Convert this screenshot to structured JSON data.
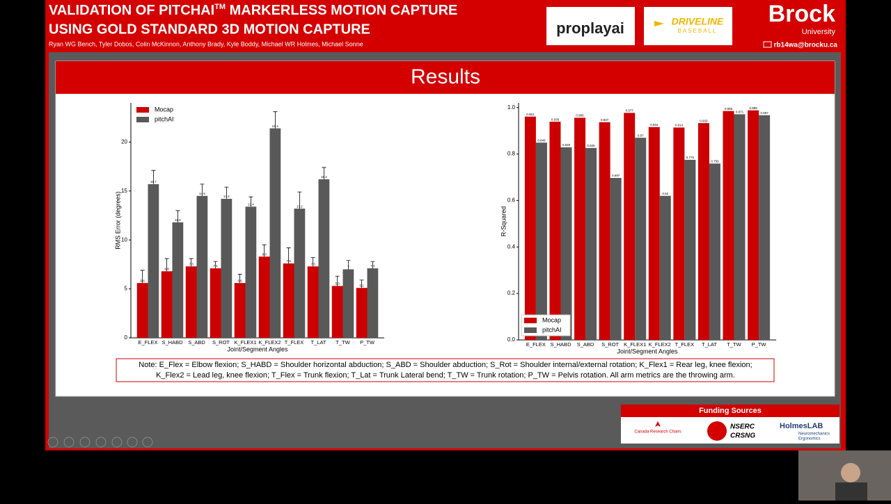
{
  "header": {
    "title_line1_a": "VALIDATION OF PITCHAI",
    "title_line1_tm": "TM",
    "title_line1_b": " MARKERLESS MOTION CAPTURE",
    "title_line2": "USING GOLD STANDARD 3D MOTION CAPTURE",
    "authors": "Ryan WG Bench, Tyler Dobos, Colin McKinnon, Anthony Brady, Kyle Boddy, Michael WR Holmes, Michael Sonne",
    "logo_proplay": "proplayai",
    "logo_driveline": "DRIVELINE",
    "logo_baseball": "BASEBALL",
    "logo_brock": "Brock",
    "logo_university": "University",
    "email": "rb14wa@brocku.ca"
  },
  "section_title": "Results",
  "chart_data": [
    {
      "type": "bar",
      "xlabel": "Joint/Segment Angles",
      "ylabel": "RMS Error (degrees)",
      "categories": [
        "E_FLEX",
        "S_HABD",
        "S_ABD",
        "S_ROT",
        "K_FLEX1",
        "K_FLEX2",
        "T_FLEX",
        "T_LAT",
        "T_TW",
        "P_TW"
      ],
      "series": [
        {
          "name": "Mocap",
          "color": "#cc0000",
          "values": [
            5.6,
            6.8,
            7.3,
            7.1,
            5.6,
            8.3,
            7.6,
            7.3,
            5.3,
            5.1
          ],
          "errors": [
            1.3,
            1.3,
            0.8,
            0.7,
            0.9,
            1.2,
            1.6,
            0.9,
            1.0,
            0.8
          ]
        },
        {
          "name": "pitchAI",
          "color": "#595959",
          "values": [
            15.7,
            11.8,
            14.5,
            14.2,
            13.4,
            21.4,
            13.2,
            16.2,
            7.0,
            7.1
          ],
          "errors": [
            1.4,
            1.2,
            1.2,
            1.2,
            1.0,
            1.7,
            1.7,
            1.2,
            0.9,
            0.7
          ]
        }
      ],
      "ylim": [
        0,
        24
      ],
      "yticks": [
        0,
        5,
        10,
        15,
        20
      ],
      "legend": "upper-left"
    },
    {
      "type": "bar",
      "xlabel": "Joint/Segment Angles",
      "ylabel": "R-Squared",
      "categories": [
        "E_FLEX",
        "S_HABD",
        "S_ABD",
        "S_ROT",
        "K_FLEX1",
        "K_FLEX2",
        "T_FLEX",
        "T_LAT",
        "T_TW",
        "P_TW"
      ],
      "series": [
        {
          "name": "Mocap",
          "color": "#cc0000",
          "values": [
            0.961,
            0.939,
            0.956,
            0.937,
            0.977,
            0.916,
            0.914,
            0.933,
            0.985,
            0.988
          ]
        },
        {
          "name": "pitchAI",
          "color": "#595959",
          "values": [
            0.849,
            0.829,
            0.826,
            0.697,
            0.87,
            0.62,
            0.775,
            0.759,
            0.971,
            0.967
          ]
        }
      ],
      "ylim": [
        0,
        1.02
      ],
      "yticks": [
        {
          "value": 0,
          "label": "0.0"
        },
        0.2,
        0.4,
        0.6,
        0.8,
        {
          "value": 1,
          "label": "1.0"
        }
      ],
      "legend": "lower-left"
    }
  ],
  "note": [
    "Note: E_Flex = Elbow flexion; S_HABD = Shoulder horizontal abduction; S_ABD = Shoulder abduction; S_Rot = Shoulder internal/external rotation; K_Flex1 = Rear leg, knee flexion;",
    "K_Flex2 = Lead leg, knee flexion; T_Flex = Trunk flexion; T_Lat = Trunk Lateral bend; T_TW = Trunk rotation; P_TW = Pelvis rotation. All arm metrics are the throwing arm."
  ],
  "funding": {
    "title": "Funding Sources",
    "crc": "Canada Research Chairs",
    "nserc": "NSERC",
    "crsng": "CRSNG",
    "holmes": "HolmesLAB",
    "neuro": "Neuromechanics",
    "ergo": "Ergonomics"
  }
}
